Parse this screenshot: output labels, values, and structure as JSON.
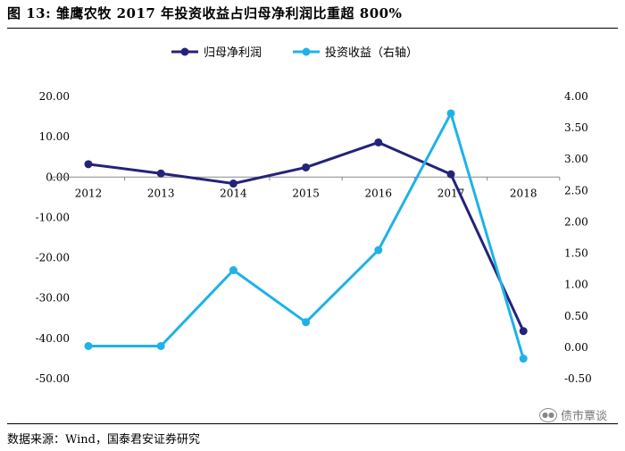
{
  "figure": {
    "title": "图 13: 雏鹰农牧 2017 年投资收益占归母净利润比重超 800%",
    "source": "数据来源：Wind，国泰君安证券研究",
    "watermark": "债市覃谈"
  },
  "colors": {
    "series1": "#24237a",
    "series2": "#1fb2e8",
    "axis": "#888888"
  },
  "chart_data": {
    "type": "line",
    "title": "",
    "categories": [
      "2012",
      "2013",
      "2014",
      "2015",
      "2016",
      "2017",
      "2018"
    ],
    "series": [
      {
        "name": "归母净利润",
        "axis": "left",
        "values": [
          3.2,
          0.9,
          -1.6,
          2.4,
          8.6,
          0.7,
          -38.2
        ]
      },
      {
        "name": "投资收益（右轴）",
        "axis": "right",
        "values": [
          0.02,
          0.02,
          1.23,
          0.4,
          1.55,
          3.73,
          -0.18
        ]
      }
    ],
    "left_axis": {
      "ylim": [
        -50,
        20
      ],
      "ticks": [
        "20.00",
        "10.00",
        "0.00",
        "-10.00",
        "-20.00",
        "-30.00",
        "-40.00",
        "-50.00"
      ]
    },
    "right_axis": {
      "ylim": [
        -0.5,
        4.0
      ],
      "ticks": [
        "4.00",
        "3.50",
        "3.00",
        "2.50",
        "2.00",
        "1.50",
        "1.00",
        "0.50",
        "0.00",
        "-0.50"
      ]
    },
    "legend_position": "top-center",
    "grid": false
  }
}
